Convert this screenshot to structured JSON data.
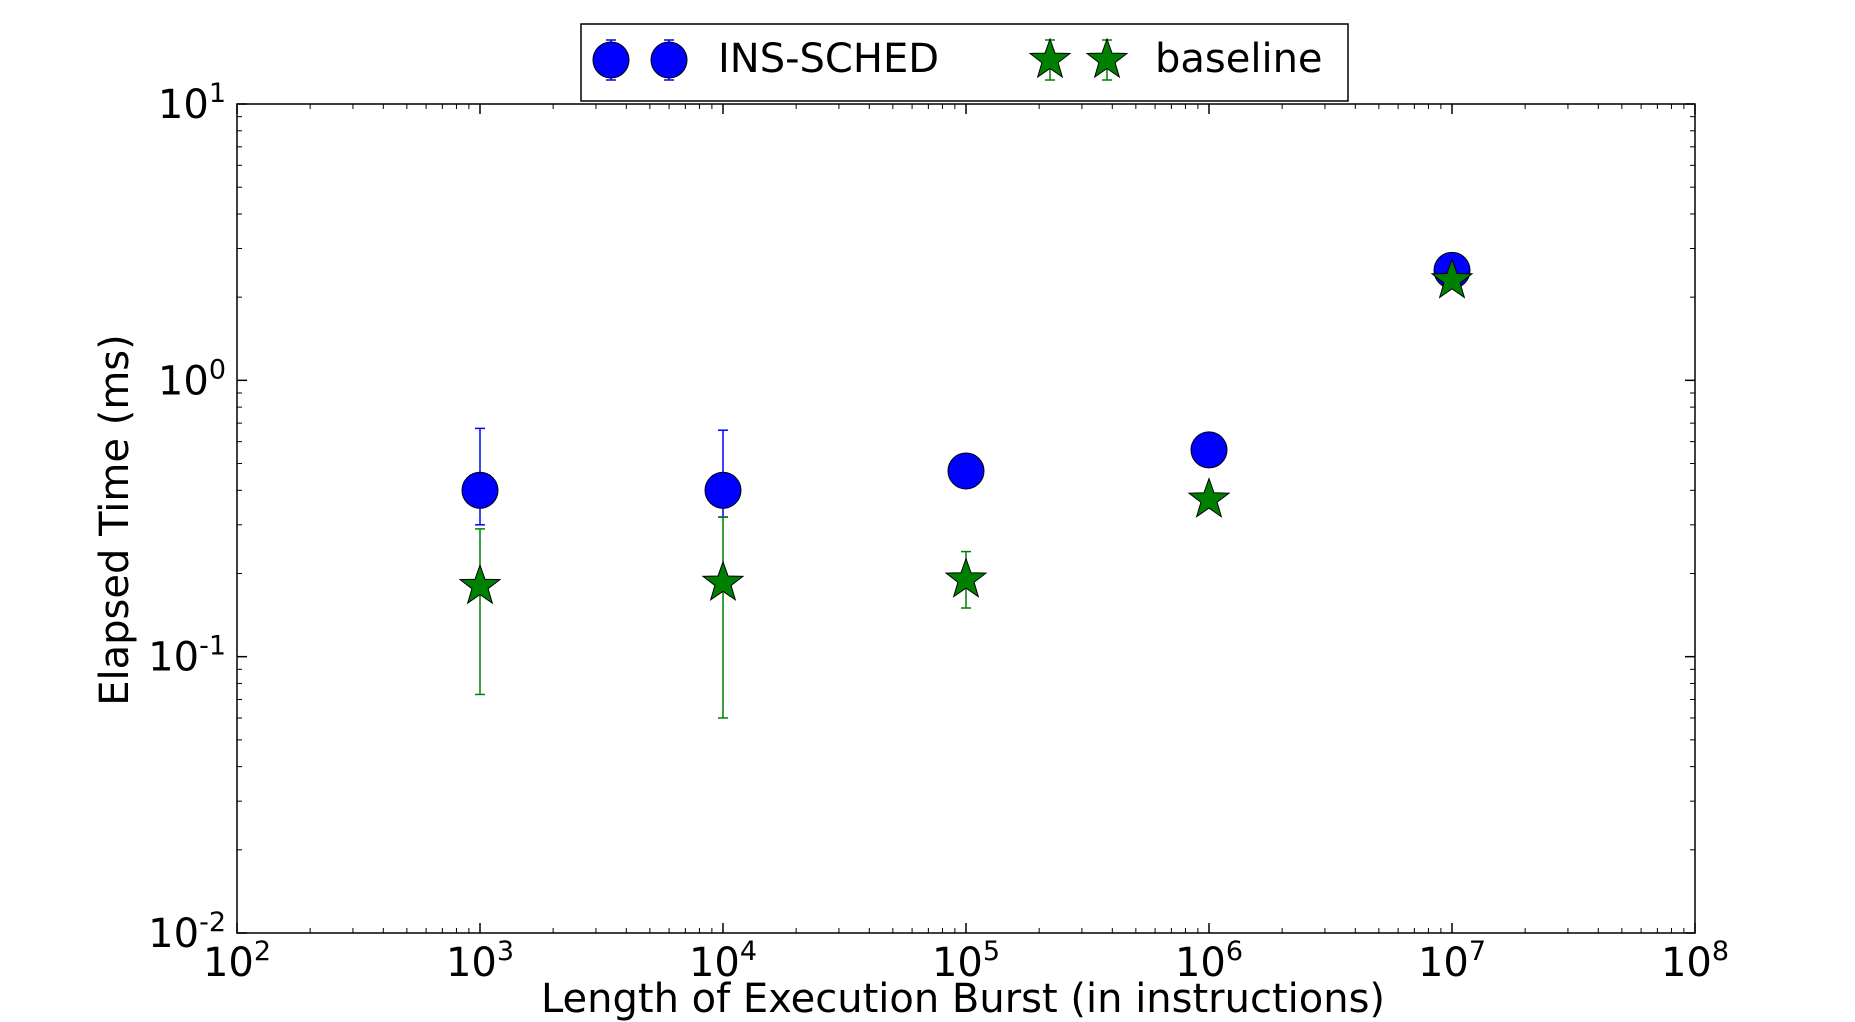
{
  "chart_data": {
    "type": "scatter",
    "xscale": "log",
    "yscale": "log",
    "xlim": [
      100,
      100000000
    ],
    "ylim": [
      0.01,
      10
    ],
    "xlabel": "Length of Execution Burst (in instructions)",
    "ylabel": "Elapsed Time (ms)",
    "x_ticks": [
      {
        "base": "10",
        "exp": "2",
        "value": 100
      },
      {
        "base": "10",
        "exp": "3",
        "value": 1000
      },
      {
        "base": "10",
        "exp": "4",
        "value": 10000
      },
      {
        "base": "10",
        "exp": "5",
        "value": 100000
      },
      {
        "base": "10",
        "exp": "6",
        "value": 1000000
      },
      {
        "base": "10",
        "exp": "7",
        "value": 10000000
      },
      {
        "base": "10",
        "exp": "8",
        "value": 100000000
      }
    ],
    "y_ticks": [
      {
        "base": "10",
        "exp": "-2",
        "value": 0.01
      },
      {
        "base": "10",
        "exp": "-1",
        "value": 0.1
      },
      {
        "base": "10",
        "exp": "0",
        "value": 1
      },
      {
        "base": "10",
        "exp": "1",
        "value": 10
      }
    ],
    "legend_position": "top-center",
    "series": [
      {
        "name": "INS-SCHED",
        "marker": "circle",
        "color": "#0000ff",
        "x": [
          1000,
          10000,
          100000,
          1000000,
          10000000
        ],
        "y": [
          0.4,
          0.4,
          0.47,
          0.56,
          2.5
        ],
        "err_low": [
          0.3,
          0.32,
          null,
          null,
          null
        ],
        "err_high": [
          0.67,
          0.66,
          null,
          null,
          null
        ]
      },
      {
        "name": "baseline",
        "marker": "star",
        "color": "#008000",
        "x": [
          1000,
          10000,
          100000,
          1000000,
          10000000
        ],
        "y": [
          0.18,
          0.185,
          0.19,
          0.37,
          2.3
        ],
        "err_low": [
          0.073,
          0.06,
          0.15,
          null,
          null
        ],
        "err_high": [
          0.29,
          0.32,
          0.24,
          null,
          null
        ]
      }
    ]
  }
}
